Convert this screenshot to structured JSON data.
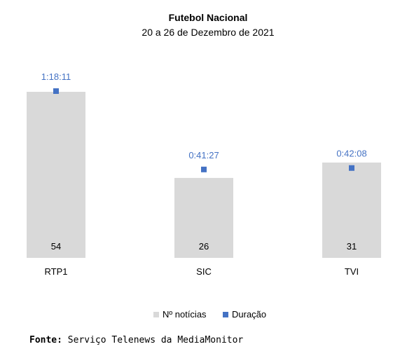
{
  "chart_data": {
    "type": "bar",
    "title": "Futebol Nacional",
    "subtitle": "20 a 26 de Dezembro de 2021",
    "categories": [
      "RTP1",
      "SIC",
      "TVI"
    ],
    "series": [
      {
        "name": "Nº notícias",
        "values": [
          54,
          26,
          31
        ],
        "labels": [
          "54",
          "26",
          "31"
        ],
        "color": "#d9d9d9"
      },
      {
        "name": "Duração",
        "values_seconds": [
          4691,
          2487,
          2528
        ],
        "labels": [
          "1:18:11",
          "0:41:27",
          "0:42:08"
        ],
        "color": "#4472c4"
      }
    ],
    "legend": "bottom",
    "grid": false
  },
  "source": {
    "label": "Fonte:",
    "text": " Serviço Telenews da MediaMonitor"
  }
}
